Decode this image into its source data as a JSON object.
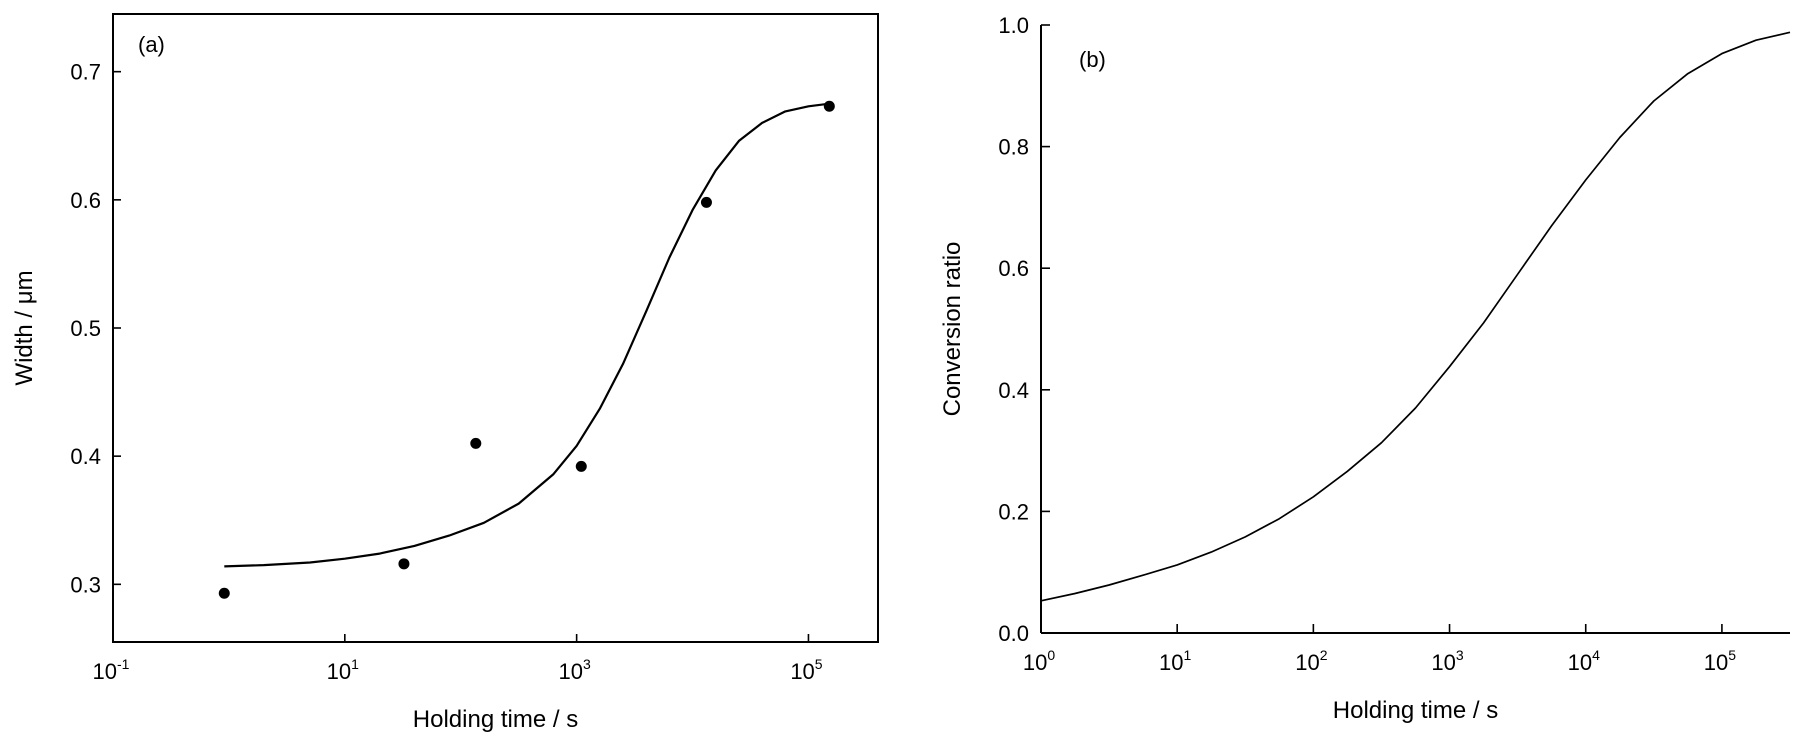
{
  "chart_data": [
    {
      "type": "scatter",
      "panel_label": "(a)",
      "xlabel": "Holding time / s",
      "ylabel": "Width / μm",
      "xscale": "log",
      "xlim": [
        -1,
        5.6
      ],
      "xticks": [
        {
          "exp": -1,
          "base": "10",
          "sup": "-1"
        },
        {
          "exp": 1,
          "base": "10",
          "sup": "1"
        },
        {
          "exp": 3,
          "base": "10",
          "sup": "3"
        },
        {
          "exp": 5,
          "base": "10",
          "sup": "5"
        }
      ],
      "ylim": [
        0.255,
        0.745
      ],
      "yticks": [
        {
          "value": 0.3,
          "label": "0.3"
        },
        {
          "value": 0.4,
          "label": "0.4"
        },
        {
          "value": 0.5,
          "label": "0.5"
        },
        {
          "value": 0.6,
          "label": "0.6"
        },
        {
          "value": 0.7,
          "label": "0.7"
        }
      ],
      "grid": false,
      "series": [
        {
          "kind": "points",
          "log10_x": [
            -0.04,
            1.51,
            2.13,
            3.04,
            4.12,
            5.18
          ],
          "y": [
            0.293,
            0.316,
            0.41,
            0.392,
            0.598,
            0.673
          ]
        },
        {
          "kind": "line",
          "log10_x": [
            -0.04,
            0.3,
            0.7,
            1.0,
            1.3,
            1.6,
            1.9,
            2.2,
            2.5,
            2.8,
            3.0,
            3.2,
            3.4,
            3.6,
            3.8,
            4.0,
            4.2,
            4.4,
            4.6,
            4.8,
            5.0,
            5.18
          ],
          "y": [
            0.314,
            0.315,
            0.317,
            0.32,
            0.324,
            0.33,
            0.338,
            0.348,
            0.363,
            0.386,
            0.408,
            0.437,
            0.472,
            0.513,
            0.555,
            0.592,
            0.623,
            0.646,
            0.66,
            0.669,
            0.673,
            0.675
          ]
        }
      ]
    },
    {
      "type": "line",
      "panel_label": "(b)",
      "xlabel": "Holding time / s",
      "ylabel": "Conversion ratio",
      "xscale": "log",
      "xlim": [
        0,
        5.5
      ],
      "xticks": [
        {
          "exp": 0,
          "base": "10",
          "sup": "0"
        },
        {
          "exp": 1,
          "base": "10",
          "sup": "1"
        },
        {
          "exp": 2,
          "base": "10",
          "sup": "2"
        },
        {
          "exp": 3,
          "base": "10",
          "sup": "3"
        },
        {
          "exp": 4,
          "base": "10",
          "sup": "4"
        },
        {
          "exp": 5,
          "base": "10",
          "sup": "5"
        }
      ],
      "ylim": [
        0,
        1
      ],
      "yticks": [
        {
          "value": 0.0,
          "label": "0.0"
        },
        {
          "value": 0.2,
          "label": "0.2"
        },
        {
          "value": 0.4,
          "label": "0.4"
        },
        {
          "value": 0.6,
          "label": "0.6"
        },
        {
          "value": 0.8,
          "label": "0.8"
        },
        {
          "value": 1.0,
          "label": "1.0"
        }
      ],
      "grid": false,
      "series": [
        {
          "kind": "line",
          "log10_x": [
            0,
            0.25,
            0.5,
            0.75,
            1.0,
            1.25,
            1.5,
            1.75,
            2.0,
            2.25,
            2.5,
            2.75,
            3.0,
            3.25,
            3.5,
            3.75,
            4.0,
            4.25,
            4.5,
            4.75,
            5.0,
            5.25,
            5.5
          ],
          "y": [
            0.053,
            0.065,
            0.079,
            0.095,
            0.112,
            0.133,
            0.158,
            0.188,
            0.224,
            0.266,
            0.313,
            0.37,
            0.438,
            0.51,
            0.59,
            0.67,
            0.745,
            0.815,
            0.875,
            0.92,
            0.953,
            0.975,
            0.988
          ]
        }
      ]
    }
  ]
}
